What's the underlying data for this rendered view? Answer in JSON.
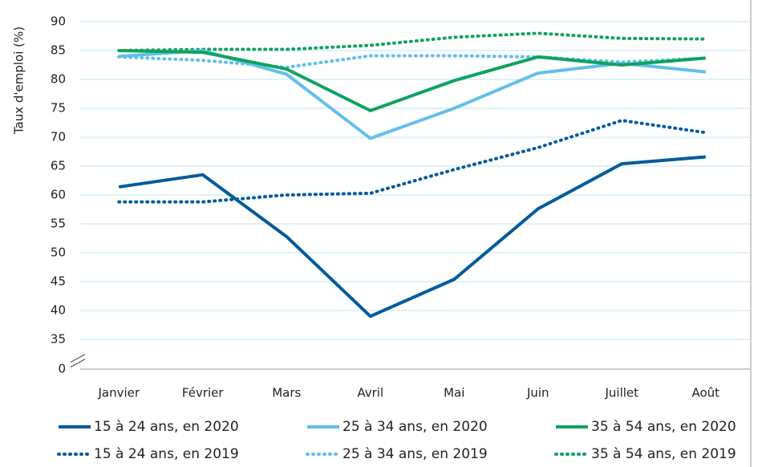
{
  "chart_data": {
    "type": "line",
    "ylabel": "Taux d'emploi (%)",
    "categories": [
      "Janvier",
      "Février",
      "Mars",
      "Avril",
      "Mai",
      "Juin",
      "Juillet",
      "Août"
    ],
    "series": [
      {
        "name": "15 à 24 ans, en 2020",
        "color": "#005b9a",
        "style": "solid",
        "values": [
          61.4,
          63.5,
          52.8,
          39,
          45.4,
          57.6,
          65.4,
          66.6
        ]
      },
      {
        "name": "25 à 34 ans, en 2020",
        "color": "#63bfe9",
        "style": "solid",
        "values": [
          84,
          85,
          80.9,
          69.8,
          75,
          81.1,
          82.8,
          81.3
        ]
      },
      {
        "name": "35 à 54 ans, en 2020",
        "color": "#0fa35e",
        "style": "solid",
        "values": [
          85,
          84.7,
          81.8,
          74.6,
          79.8,
          83.9,
          82.5,
          83.7
        ]
      },
      {
        "name": "15 à 24 ans, en 2019",
        "color": "#005b9a",
        "style": "dotted",
        "values": [
          58.8,
          58.8,
          60,
          60.3,
          64.4,
          68.2,
          72.9,
          70.8
        ]
      },
      {
        "name": "25 à 34 ans, en 2019",
        "color": "#63bfe9",
        "style": "dotted",
        "values": [
          83.9,
          83.3,
          82.1,
          84.1,
          84.1,
          83.9,
          83,
          83.7
        ]
      },
      {
        "name": "35 à 54 ans, en 2019",
        "color": "#0fa35e",
        "style": "dotted",
        "values": [
          85,
          85.2,
          85.2,
          85.9,
          87.3,
          88,
          87.1,
          87
        ]
      }
    ],
    "ylim": [
      0,
      90
    ],
    "y_break": [
      0,
      35
    ],
    "yticks": [
      0,
      35,
      40,
      45,
      50,
      55,
      60,
      65,
      70,
      75,
      80,
      85,
      90
    ],
    "grid": true
  }
}
